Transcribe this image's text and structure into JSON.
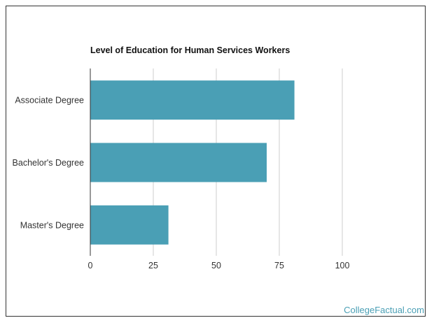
{
  "chart_data": {
    "type": "bar",
    "orientation": "horizontal",
    "title": "Level of Education for Human Services Workers",
    "categories": [
      "Associate Degree",
      "Bachelor's Degree",
      "Master's Degree"
    ],
    "values": [
      81,
      70,
      31
    ],
    "xlim": [
      0,
      100
    ],
    "x_ticks": [
      0,
      25,
      50,
      75,
      100
    ],
    "xlabel": "",
    "ylabel": "",
    "grid": "vertical",
    "bar_color": "#4a9fb5"
  },
  "watermark": "CollegeFactual.com"
}
